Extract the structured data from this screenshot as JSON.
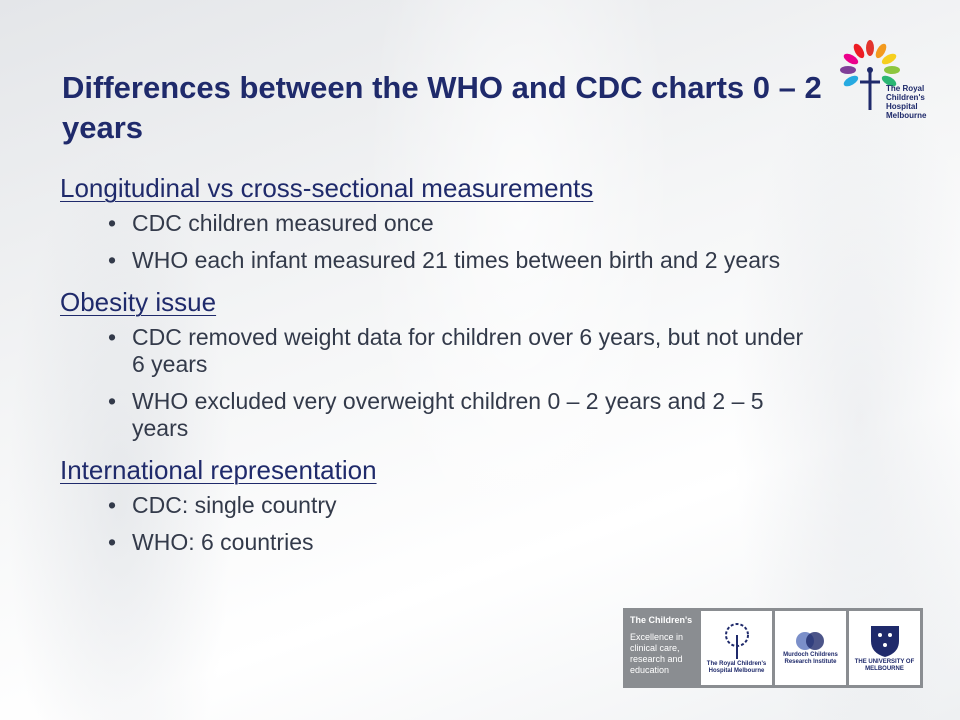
{
  "slide": {
    "title": "Differences between the WHO and CDC charts 0 – 2 years",
    "sections": [
      {
        "heading": "Longitudinal vs cross-sectional measurements",
        "bullets": [
          "CDC children measured once",
          "WHO each infant measured 21 times between birth and 2 years"
        ]
      },
      {
        "heading": "Obesity issue",
        "bullets": [
          "CDC removed weight data for children over 6 years, but not under 6 years",
          "WHO excluded very overweight children 0 – 2 years and 2 – 5 years"
        ]
      },
      {
        "heading": "International representation",
        "bullets": [
          "CDC: single country",
          "WHO: 6 countries"
        ]
      }
    ]
  },
  "logo_top": {
    "icon": "flower-person-logo-icon",
    "lines": [
      "The Royal",
      "Children's",
      "Hospital",
      "Melbourne"
    ]
  },
  "partners": {
    "heading": "The Children's",
    "tagline": "Excellence in clinical care, research and education",
    "rch": "The Royal Children's Hospital Melbourne",
    "murdoch": "Murdoch Childrens Research Institute",
    "uni": "THE UNIVERSITY OF MELBOURNE"
  },
  "colors": {
    "title": "#1f2a6b",
    "body_text": "#333a4a"
  }
}
